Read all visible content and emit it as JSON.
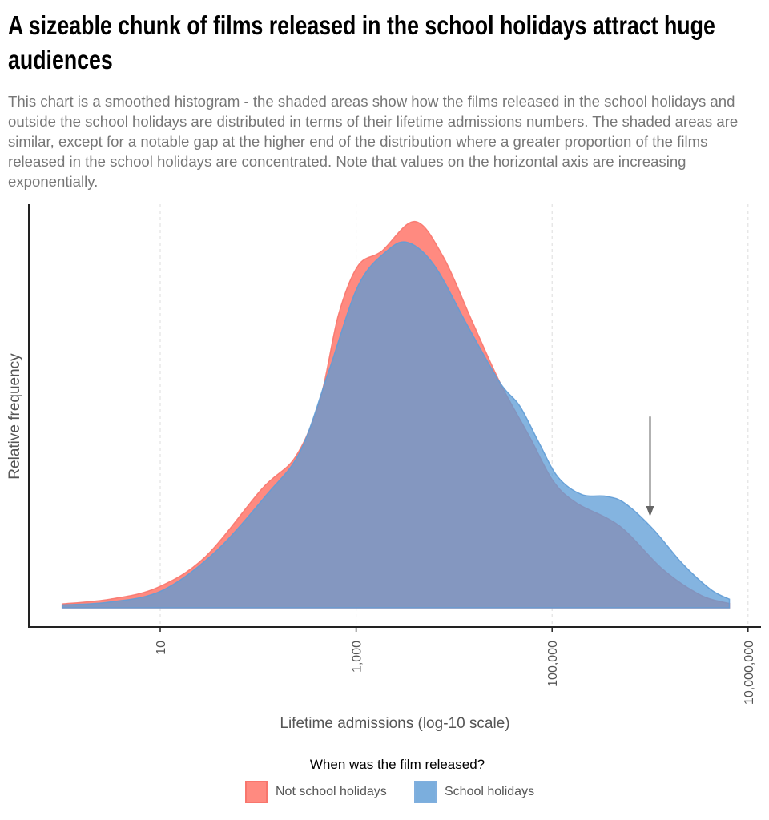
{
  "title": "A sizeable chunk of films released in the school holidays attract huge audiences",
  "subtitle": "This chart is a smoothed histogram - the shaded areas show how the films released in the school holidays and outside the school holidays are distributed in terms of their lifetime admissions numbers. The shaded areas are similar, except for a notable gap at the higher end of the distribution where a greater proportion of the films released in the school holidays are concentrated. Note that values on the horizontal axis are increasing exponentially.",
  "chart_data": {
    "type": "area",
    "xlabel": "Lifetime admissions (log-10 scale)",
    "ylabel": "Relative frequency",
    "x_scale": "log10",
    "xlim": [
      0.7,
      11500000.0
    ],
    "ylim": [
      0,
      0.42
    ],
    "x_ticks": [
      10,
      1000,
      100000,
      10000000
    ],
    "x_tick_labels": [
      "10",
      "1,000",
      "100,000",
      "10,000,000"
    ],
    "grid": "vertical dashed at major x ticks",
    "legend": {
      "title": "When was the film released?",
      "placement": "bottom"
    },
    "series": [
      {
        "name": "Not school holidays",
        "color": "#ff8a80",
        "stroke": "#f8766d",
        "log10_x": [
          0.0,
          0.49,
          0.97,
          1.46,
          2.04,
          2.38,
          2.63,
          2.82,
          3.02,
          3.26,
          3.6,
          3.89,
          4.18,
          4.47,
          4.77,
          5.01,
          5.25,
          5.69,
          6.13,
          6.52,
          6.81
        ],
        "density": [
          0.004,
          0.009,
          0.021,
          0.053,
          0.124,
          0.157,
          0.216,
          0.305,
          0.356,
          0.371,
          0.402,
          0.365,
          0.299,
          0.234,
          0.178,
          0.132,
          0.109,
          0.085,
          0.04,
          0.013,
          0.0045
        ]
      },
      {
        "name": "School holidays",
        "color": "#5b9bd5",
        "stroke": "#619cd6",
        "log10_x": [
          0.0,
          0.49,
          1.02,
          1.56,
          2.09,
          2.43,
          2.72,
          3.02,
          3.31,
          3.53,
          3.8,
          4.14,
          4.47,
          4.67,
          4.87,
          5.06,
          5.3,
          5.55,
          5.74,
          6.03,
          6.33,
          6.62,
          6.81
        ],
        "density": [
          0.003,
          0.006,
          0.018,
          0.058,
          0.118,
          0.163,
          0.246,
          0.335,
          0.371,
          0.38,
          0.356,
          0.293,
          0.234,
          0.21,
          0.171,
          0.136,
          0.118,
          0.116,
          0.109,
          0.082,
          0.046,
          0.019,
          0.009
        ]
      }
    ],
    "annotation": {
      "type": "arrow",
      "color": "#666666",
      "x": 1000000,
      "y_from": 0.199,
      "y_to": 0.095
    }
  }
}
